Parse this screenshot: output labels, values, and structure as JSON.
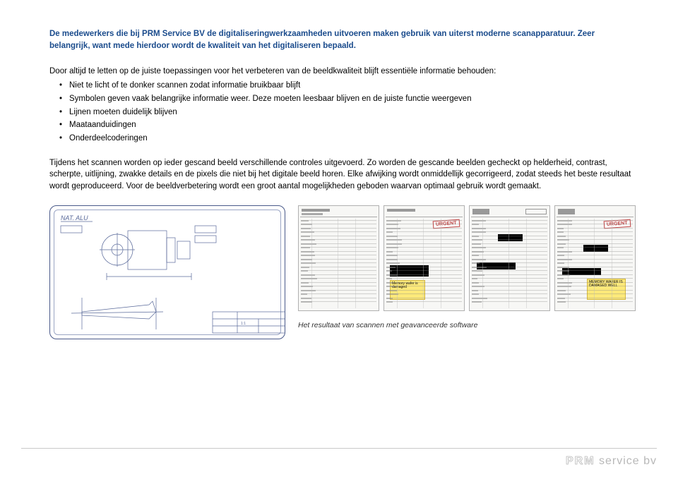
{
  "intro": "De medewerkers die bij PRM Service BV de digitaliseringwerkzaamheden uitvoeren maken gebruik van uiterst moderne scanapparatuur. Zeer belangrijk, want mede hierdoor wordt de kwaliteit van het digitaliseren bepaald.",
  "lead_in": "Door altijd te letten op de juiste toepassingen voor het verbeteren van de beeldkwaliteit blijft essentiële informatie behouden:",
  "bullets": {
    "b1": "Niet te licht of te donker scannen zodat informatie bruikbaar blijft",
    "b2": "Symbolen geven vaak belangrijke informatie weer. Deze moeten leesbaar blijven en de juiste functie weergeven",
    "b3": "Lijnen moeten duidelijk blijven",
    "b4": "Maataanduidingen",
    "b5": "Onderdeelcoderingen"
  },
  "closing": "Tijdens het scannen worden op ieder gescand beeld verschillende controles uitgevoerd. Zo worden de gescande beelden gecheckt op helderheid, contrast, scherpte, uitlijning, zwakke details en de pixels die niet bij het digitale beeld horen. Elke afwijking wordt onmiddellijk gecorrigeerd, zodat steeds het beste resultaat wordt geproduceerd. Voor de beeldverbetering wordt een groot aantal mogelijkheden geboden waarvan optimaal gebruik wordt gemaakt.",
  "caption": "Het resultaat van scannen met geavanceerde software",
  "footer": {
    "brand": "PRM",
    "suffix": "service bv"
  },
  "urgent_label": "URGENT",
  "colors": {
    "heading": "#1a4b8c",
    "border": "#4a5a8a"
  }
}
